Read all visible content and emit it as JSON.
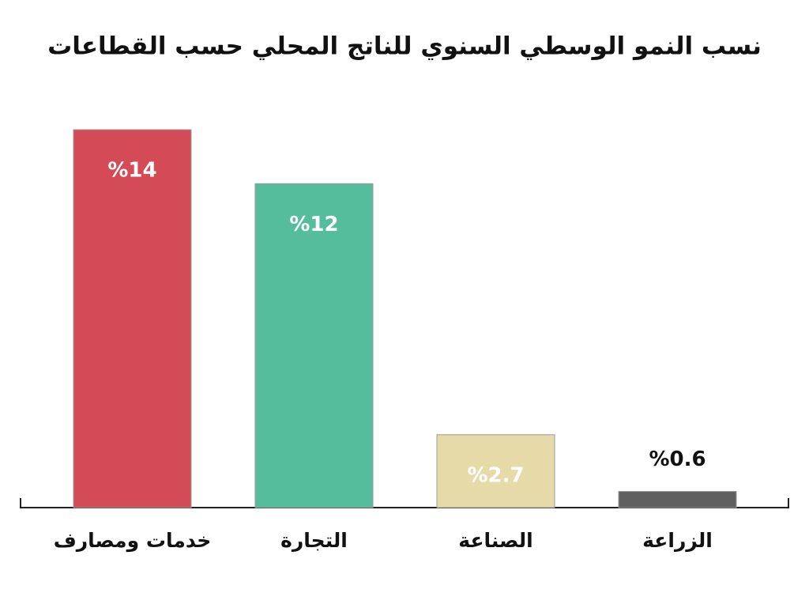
{
  "chart_data": {
    "type": "bar",
    "title": "نسب النمو الوسطي السنوي للناتج المحلي حسب القطاعات",
    "categories": [
      "خدمات ومصارف",
      "التجارة",
      "الصناعة",
      "الزراعة"
    ],
    "values": [
      14,
      12,
      2.7,
      0.6
    ],
    "value_labels": [
      "%14",
      "%12",
      "%2.7",
      "%0.6"
    ],
    "colors": [
      "#d44a55",
      "#55bd9c",
      "#e6dba8",
      "#606060"
    ]
  }
}
